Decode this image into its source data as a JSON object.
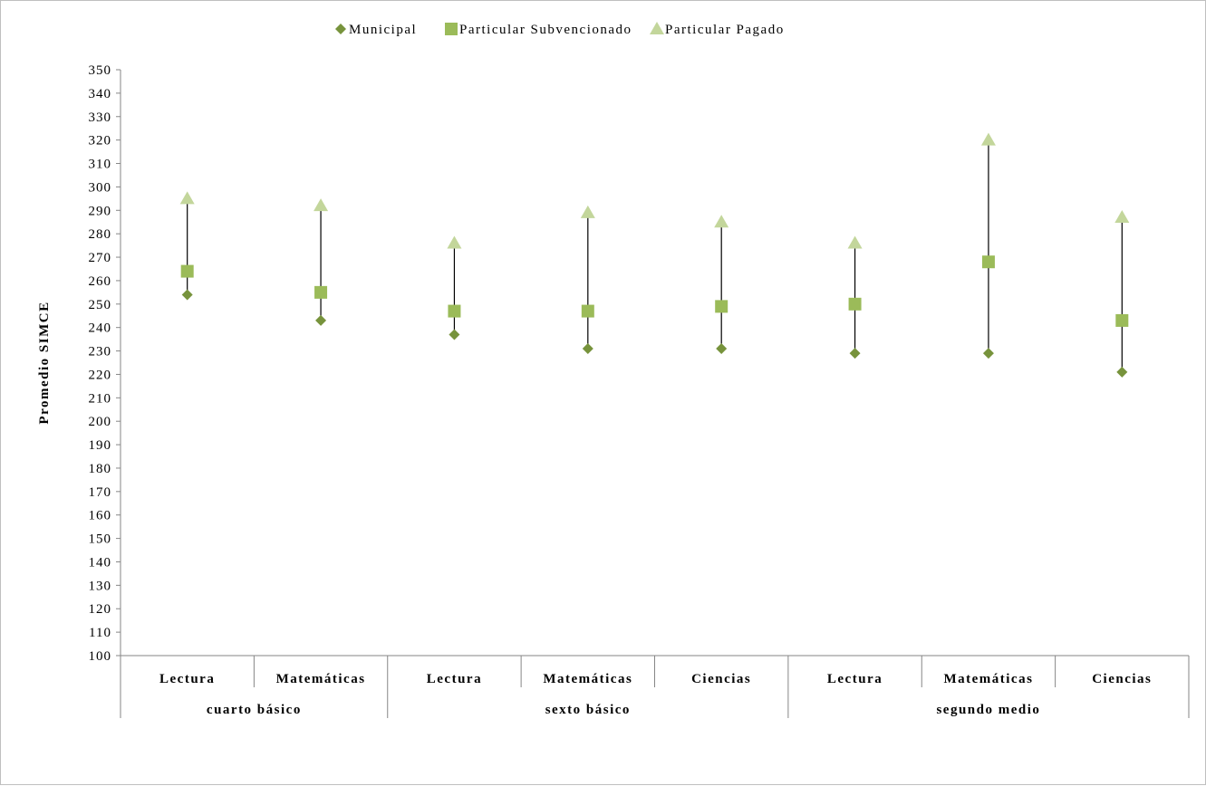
{
  "chart_data": {
    "type": "scatter",
    "title": "",
    "xlabel": "",
    "ylabel": "Promedio SIMCE",
    "ylim": [
      100,
      350
    ],
    "ytick_step": 10,
    "grid": false,
    "legend_position": "top-center",
    "groups": [
      {
        "label": "cuarto básico",
        "categories": [
          "Lectura",
          "Matemáticas"
        ]
      },
      {
        "label": "sexto básico",
        "categories": [
          "Lectura",
          "Matemáticas",
          "Ciencias"
        ]
      },
      {
        "label": "segundo medio",
        "categories": [
          "Lectura",
          "Matemáticas",
          "Ciencias"
        ]
      }
    ],
    "series": [
      {
        "name": "Municipal",
        "marker": "diamond",
        "color": "#77933C",
        "values": [
          254,
          243,
          237,
          231,
          231,
          229,
          229,
          221
        ]
      },
      {
        "name": "Particular Subvencionado",
        "marker": "square",
        "color": "#9BBB59",
        "values": [
          264,
          255,
          247,
          247,
          249,
          250,
          268,
          243
        ]
      },
      {
        "name": "Particular Pagado",
        "marker": "triangle",
        "color": "#C3D69B",
        "values": [
          295,
          292,
          276,
          289,
          285,
          276,
          320,
          287
        ]
      }
    ],
    "range_line_color": "#000000",
    "axis_color": "#868686"
  }
}
